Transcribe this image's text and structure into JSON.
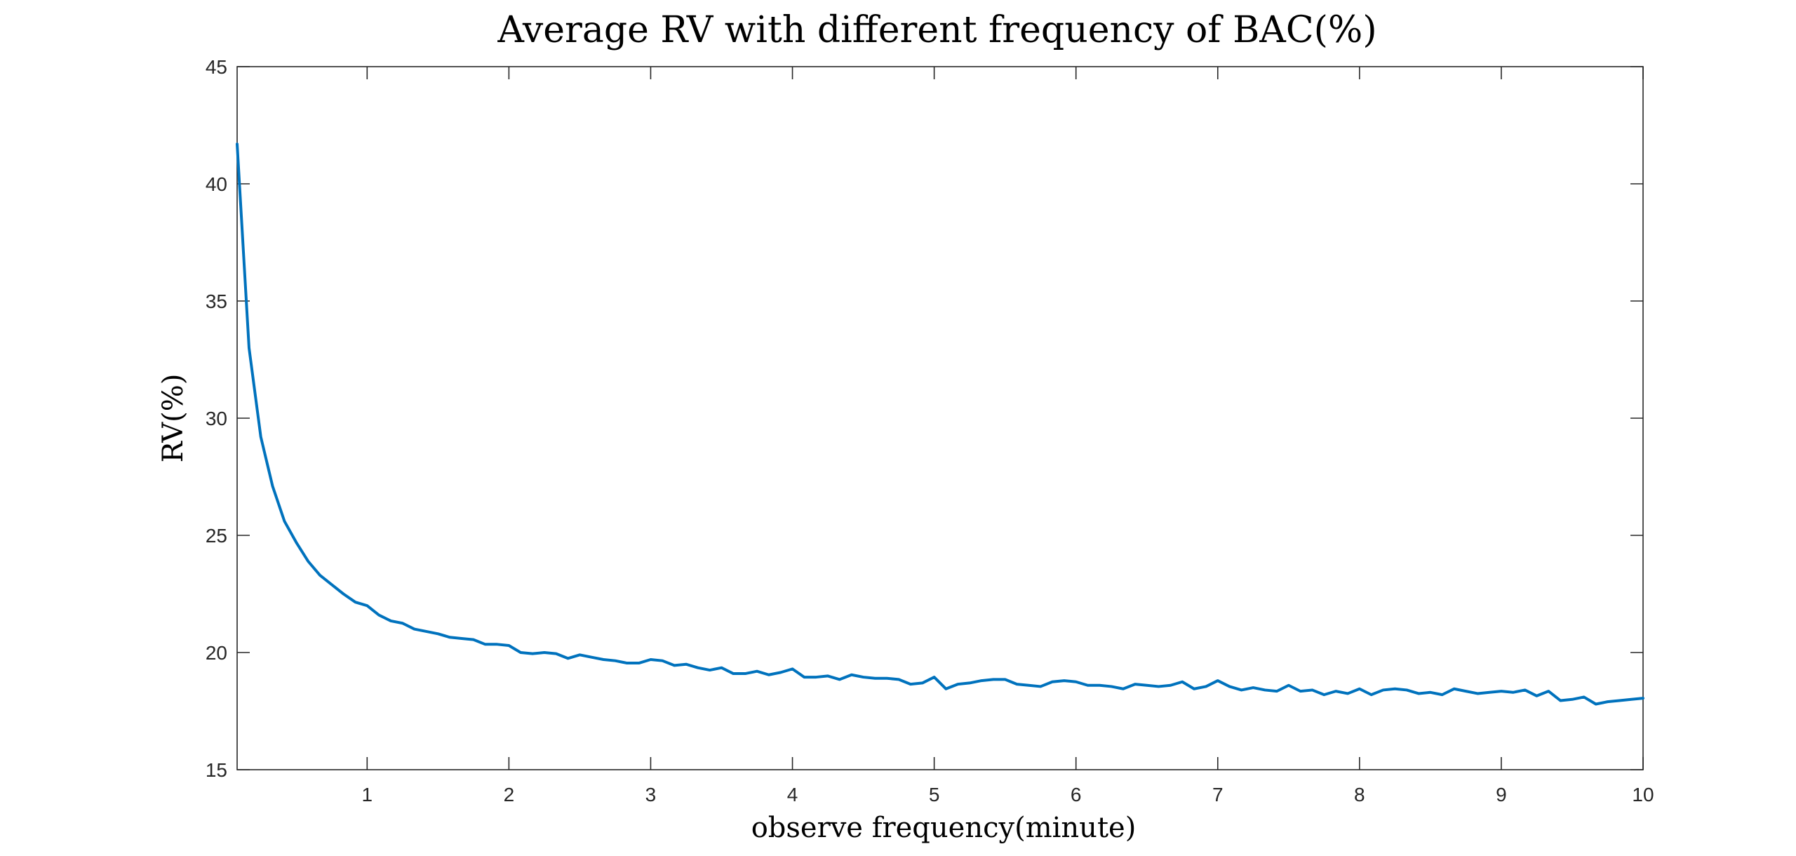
{
  "chart_data": {
    "type": "line",
    "title": "Average RV with different frequency of BAC(%)",
    "xlabel": "observe frequency(minute)",
    "ylabel": "RV(%)",
    "xlim": [
      0.083,
      10
    ],
    "ylim": [
      15,
      45
    ],
    "xticks": [
      1,
      2,
      3,
      4,
      5,
      6,
      7,
      8,
      9,
      10
    ],
    "xtick_labels": [
      "1",
      "2",
      "3",
      "4",
      "5",
      "6",
      "7",
      "8",
      "9",
      "10"
    ],
    "yticks": [
      15,
      20,
      25,
      30,
      35,
      40,
      45
    ],
    "ytick_labels": [
      "15",
      "20",
      "25",
      "30",
      "35",
      "40",
      "45"
    ],
    "grid": false,
    "legend": "none",
    "line_color": "#0072BD",
    "series": [
      {
        "x": [
          0.083,
          0.167,
          0.25,
          0.333,
          0.417,
          0.5,
          0.583,
          0.667,
          0.75,
          0.833,
          0.917,
          1.0,
          1.083,
          1.167,
          1.25,
          1.333,
          1.417,
          1.5,
          1.583,
          1.667,
          1.75,
          1.833,
          1.917,
          2.0,
          2.083,
          2.167,
          2.25,
          2.333,
          2.417,
          2.5,
          2.583,
          2.667,
          2.75,
          2.833,
          2.917,
          3.0,
          3.083,
          3.167,
          3.25,
          3.333,
          3.417,
          3.5,
          3.583,
          3.667,
          3.75,
          3.833,
          3.917,
          4.0,
          4.083,
          4.167,
          4.25,
          4.333,
          4.417,
          4.5,
          4.583,
          4.667,
          4.75,
          4.833,
          4.917,
          5.0,
          5.083,
          5.167,
          5.25,
          5.333,
          5.417,
          5.5,
          5.583,
          5.667,
          5.75,
          5.833,
          5.917,
          6.0,
          6.083,
          6.167,
          6.25,
          6.333,
          6.417,
          6.5,
          6.583,
          6.667,
          6.75,
          6.833,
          6.917,
          7.0,
          7.083,
          7.167,
          7.25,
          7.333,
          7.417,
          7.5,
          7.583,
          7.667,
          7.75,
          7.833,
          7.917,
          8.0,
          8.083,
          8.167,
          8.25,
          8.333,
          8.417,
          8.5,
          8.583,
          8.667,
          8.75,
          8.833,
          8.917,
          9.0,
          9.083,
          9.167,
          9.25,
          9.333,
          9.417,
          9.5,
          9.583,
          9.667,
          9.75,
          9.833,
          9.917,
          10.0
        ],
        "values": [
          41.7,
          33.0,
          29.2,
          27.1,
          25.6,
          24.7,
          23.9,
          23.3,
          22.9,
          22.5,
          22.15,
          22.0,
          21.6,
          21.35,
          21.25,
          21.0,
          20.9,
          20.8,
          20.65,
          20.6,
          20.55,
          20.35,
          20.35,
          20.3,
          20.0,
          19.95,
          20.0,
          19.95,
          19.75,
          19.9,
          19.8,
          19.7,
          19.65,
          19.55,
          19.55,
          19.7,
          19.65,
          19.45,
          19.5,
          19.35,
          19.25,
          19.35,
          19.1,
          19.1,
          19.2,
          19.05,
          19.15,
          19.3,
          18.95,
          18.95,
          19.0,
          18.85,
          19.05,
          18.95,
          18.9,
          18.9,
          18.85,
          18.65,
          18.7,
          18.95,
          18.45,
          18.65,
          18.7,
          18.8,
          18.85,
          18.85,
          18.65,
          18.6,
          18.55,
          18.75,
          18.8,
          18.75,
          18.6,
          18.6,
          18.55,
          18.45,
          18.65,
          18.6,
          18.55,
          18.6,
          18.75,
          18.45,
          18.55,
          18.8,
          18.55,
          18.4,
          18.5,
          18.4,
          18.35,
          18.6,
          18.35,
          18.4,
          18.2,
          18.35,
          18.25,
          18.45,
          18.2,
          18.4,
          18.45,
          18.4,
          18.25,
          18.3,
          18.2,
          18.45,
          18.35,
          18.25,
          18.3,
          18.35,
          18.3,
          18.4,
          18.15,
          18.35,
          17.95,
          18.0,
          18.1,
          17.8,
          17.9,
          17.95,
          18.0,
          18.05
        ]
      }
    ]
  }
}
